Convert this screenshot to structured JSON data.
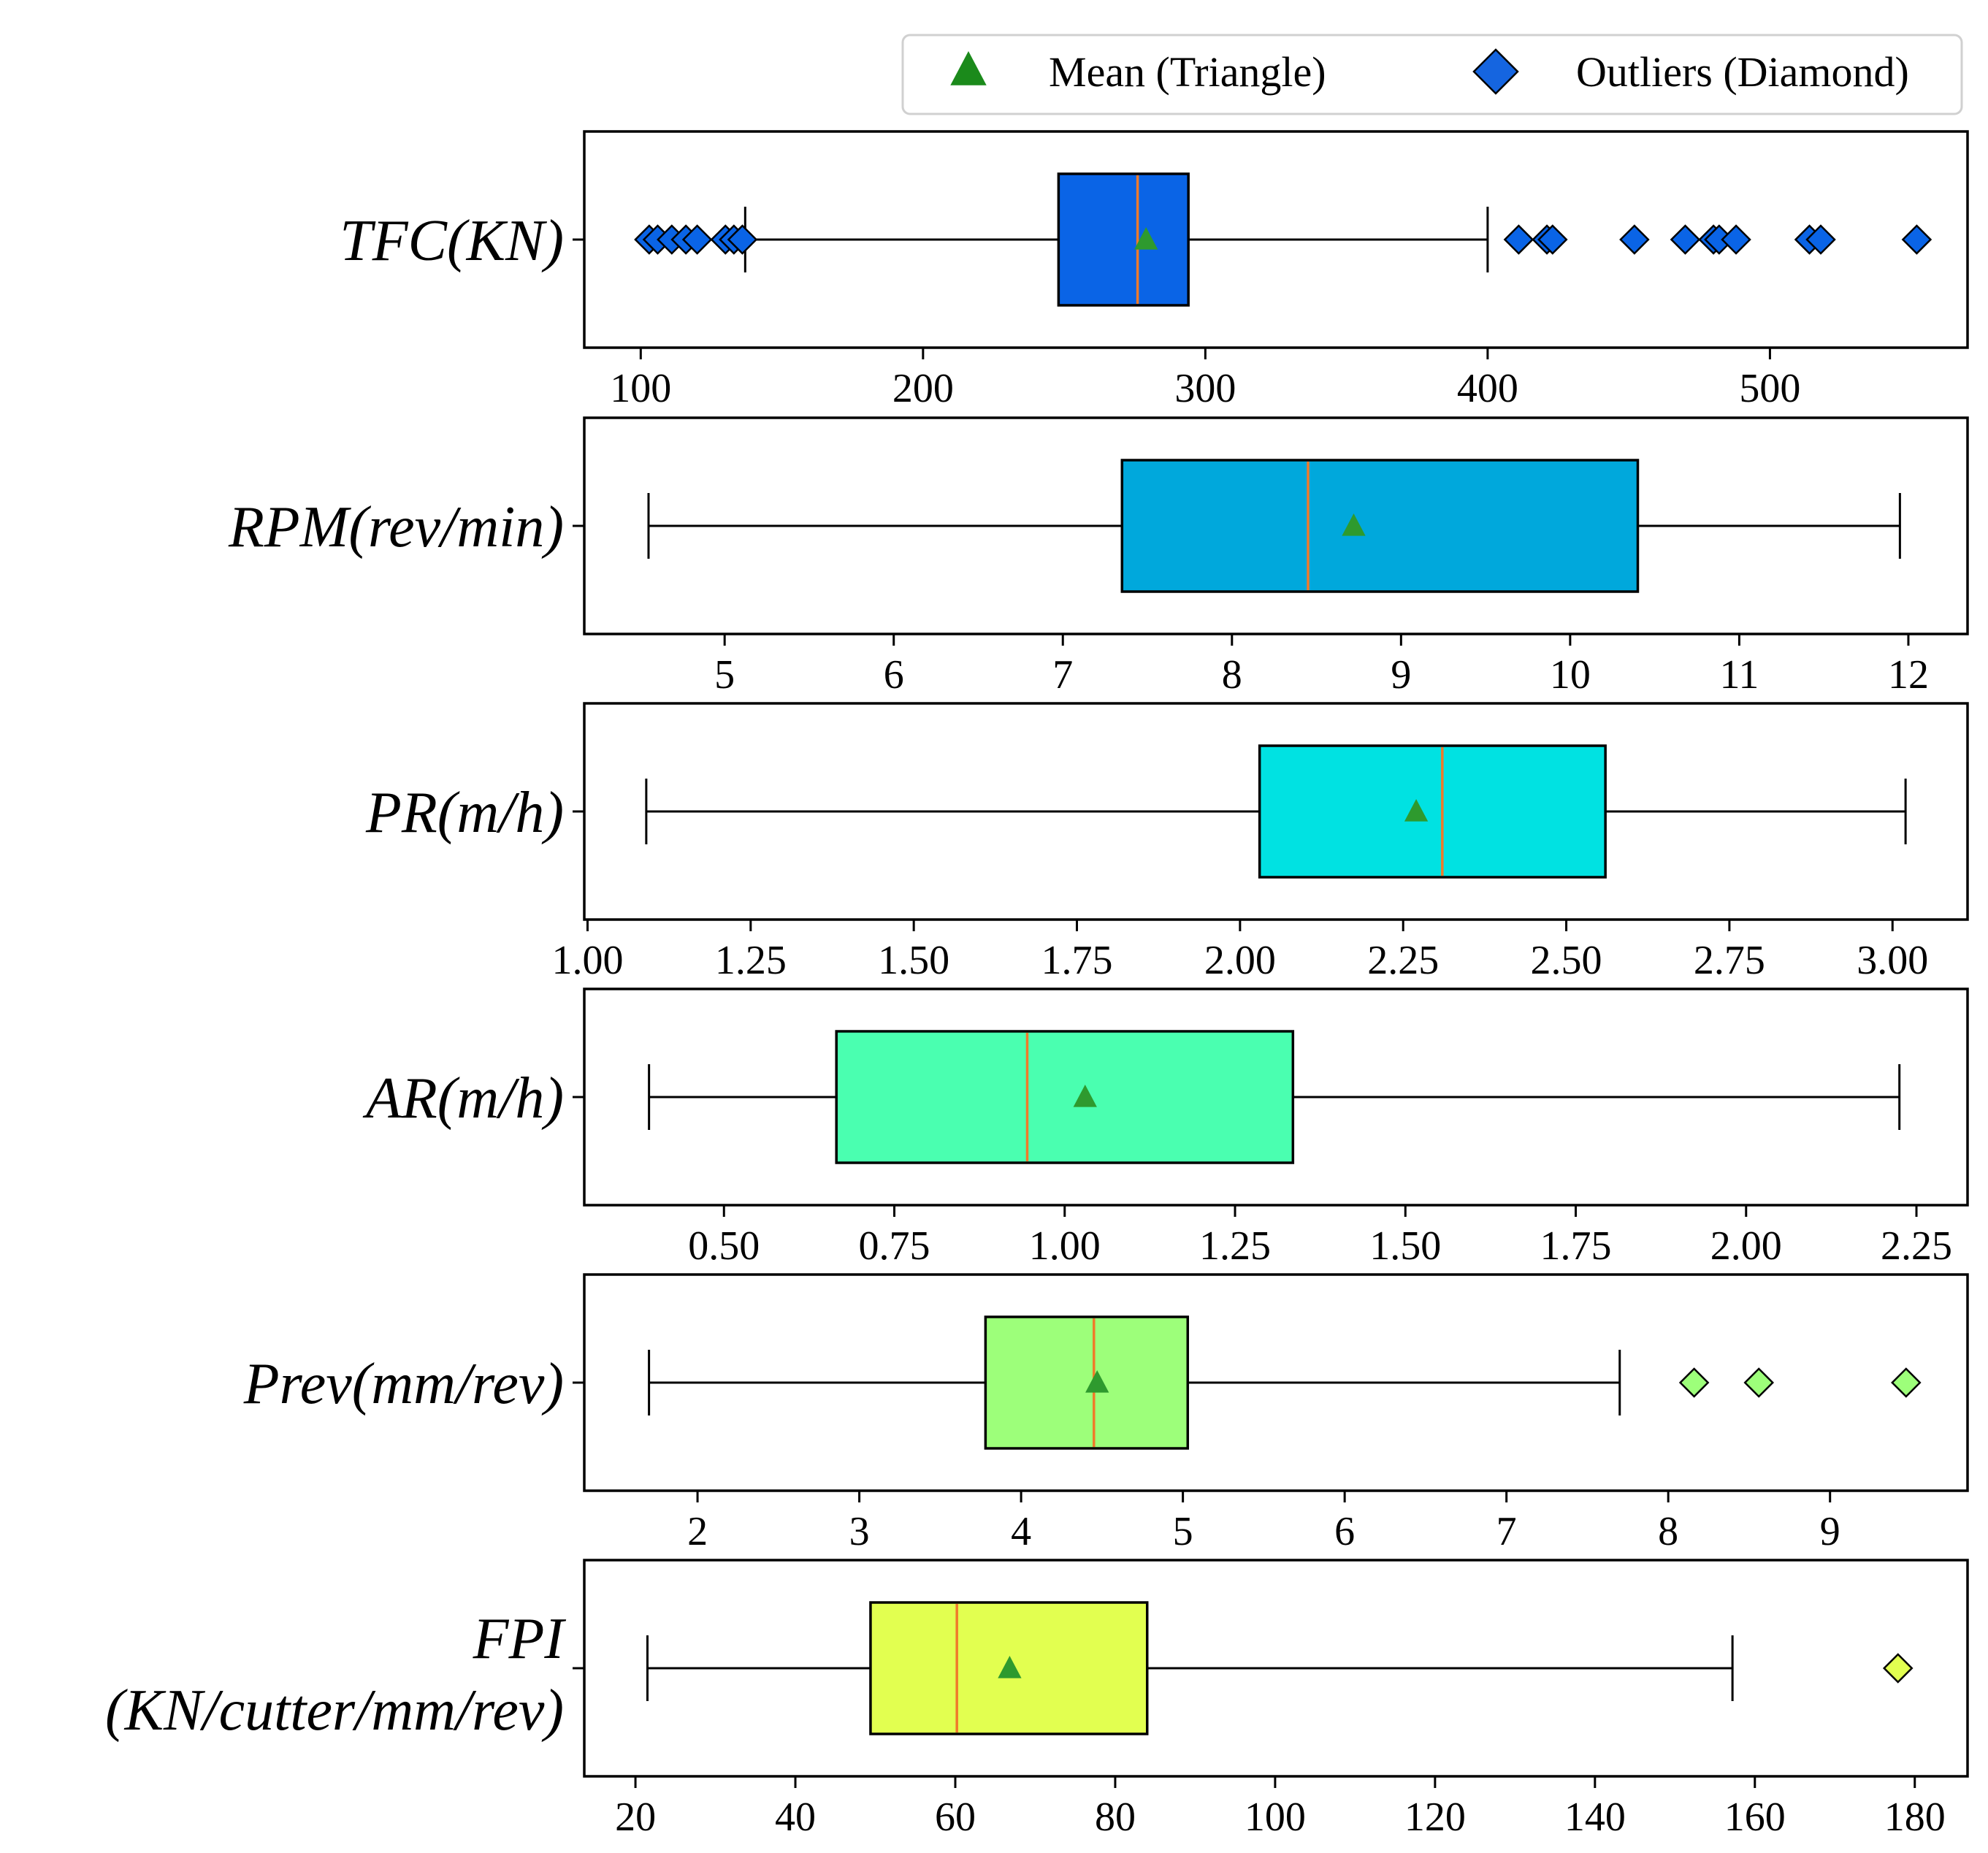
{
  "chart_data": {
    "type": "boxplot",
    "legend": {
      "placement": "top-right",
      "items": [
        {
          "label": "Mean (Triangle)",
          "marker": "triangle",
          "color": "#1b8a1b"
        },
        {
          "label": "Outliers (Diamond)",
          "marker": "diamond",
          "color": "#1565e0"
        }
      ]
    },
    "median_color": "#f07a2a",
    "mean_color": "#2e9a2e",
    "panels": [
      {
        "id": "tfc",
        "ylabel": [
          "TFC(KN)"
        ],
        "color": "#0a64e6",
        "xlim": [
          80,
          570
        ],
        "xticks": [
          100,
          200,
          300,
          400,
          500
        ],
        "tick_labels": [
          "100",
          "200",
          "300",
          "400",
          "500"
        ],
        "whisker_low": 137,
        "q1": 248,
        "median": 276,
        "q3": 294,
        "whisker_high": 400,
        "mean": 279,
        "outliers": [
          103,
          106,
          111,
          116,
          120,
          130,
          133,
          136,
          411,
          421,
          423,
          452,
          470,
          480,
          482,
          488,
          514,
          518,
          552
        ]
      },
      {
        "id": "rpm",
        "ylabel": [
          "RPM(rev/min)"
        ],
        "color": "#00a8dc",
        "xlim": [
          4.17,
          12.35
        ],
        "xticks": [
          5,
          6,
          7,
          8,
          9,
          10,
          11,
          12
        ],
        "tick_labels": [
          "5",
          "6",
          "7",
          "8",
          "9",
          "10",
          "11",
          "12"
        ],
        "whisker_low": 4.55,
        "q1": 7.35,
        "median": 8.45,
        "q3": 10.4,
        "whisker_high": 11.95,
        "mean": 8.72,
        "outliers": []
      },
      {
        "id": "pr",
        "ylabel": [
          "PR(m/h)"
        ],
        "color": "#00e2e2",
        "xlim": [
          0.995,
          3.115
        ],
        "xticks": [
          1.0,
          1.25,
          1.5,
          1.75,
          2.0,
          2.25,
          2.5,
          2.75,
          3.0
        ],
        "tick_labels": [
          "1.00",
          "1.25",
          "1.50",
          "1.75",
          "2.00",
          "2.25",
          "2.50",
          "2.75",
          "3.00"
        ],
        "whisker_low": 1.09,
        "q1": 2.03,
        "median": 2.31,
        "q3": 2.56,
        "whisker_high": 3.02,
        "mean": 2.27,
        "outliers": []
      },
      {
        "id": "ar",
        "ylabel": [
          "AR(m/h)"
        ],
        "color": "#4affb0",
        "xlim": [
          0.295,
          2.325
        ],
        "xticks": [
          0.5,
          0.75,
          1.0,
          1.25,
          1.5,
          1.75,
          2.0,
          2.25
        ],
        "tick_labels": [
          "0.50",
          "0.75",
          "1.00",
          "1.25",
          "1.50",
          "1.75",
          "2.00",
          "2.25"
        ],
        "whisker_low": 0.39,
        "q1": 0.665,
        "median": 0.945,
        "q3": 1.335,
        "whisker_high": 2.225,
        "mean": 1.03,
        "outliers": []
      },
      {
        "id": "prev",
        "ylabel": [
          "Prev(mm/rev)"
        ],
        "color": "#9dff7a",
        "xlim": [
          1.3,
          9.85
        ],
        "xticks": [
          2,
          3,
          4,
          5,
          6,
          7,
          8,
          9
        ],
        "tick_labels": [
          "2",
          "3",
          "4",
          "5",
          "6",
          "7",
          "8",
          "9"
        ],
        "whisker_low": 1.7,
        "q1": 3.78,
        "median": 4.45,
        "q3": 5.03,
        "whisker_high": 7.7,
        "mean": 4.47,
        "outliers": [
          8.16,
          8.56,
          9.47
        ]
      },
      {
        "id": "fpi",
        "ylabel": [
          "FPI",
          "(KN/cutter/mm/rev)"
        ],
        "color": "#e2ff50",
        "xlim": [
          13.6,
          186.6
        ],
        "xticks": [
          20,
          40,
          60,
          80,
          100,
          120,
          140,
          160,
          180
        ],
        "tick_labels": [
          "20",
          "40",
          "60",
          "80",
          "100",
          "120",
          "140",
          "160",
          "180"
        ],
        "whisker_low": 21.5,
        "q1": 49.4,
        "median": 60.2,
        "q3": 84.0,
        "whisker_high": 157.2,
        "mean": 66.8,
        "outliers": [
          177.9
        ]
      }
    ]
  }
}
